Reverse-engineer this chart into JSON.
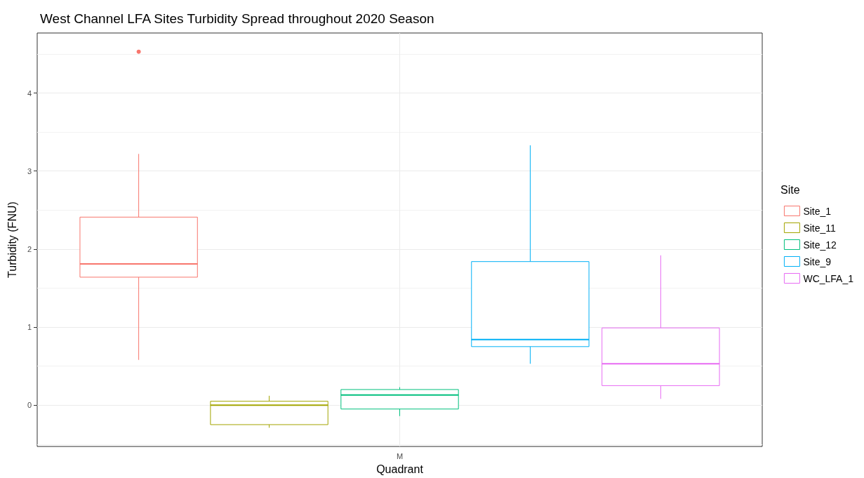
{
  "chart_data": {
    "type": "box",
    "title": "West Channel LFA Sites Turbidity Spread throughout 2020 Season",
    "xlabel": "Quadrant",
    "ylabel": "Turbidity (FNU)",
    "legend_title": "Site",
    "categories": [
      "M"
    ],
    "series": [
      {
        "name": "Site_1",
        "color": "#f8766d",
        "boxes": [
          {
            "low": 0.58,
            "q1": 1.64,
            "median": 1.81,
            "q3": 2.41,
            "high": 3.22,
            "outliers": [
              4.53
            ]
          }
        ]
      },
      {
        "name": "Site_11",
        "color": "#a3a500",
        "boxes": [
          {
            "low": -0.29,
            "q1": -0.25,
            "median": 0.0,
            "q3": 0.05,
            "high": 0.12
          }
        ]
      },
      {
        "name": "Site_12",
        "color": "#00bf7d",
        "boxes": [
          {
            "low": -0.14,
            "q1": -0.05,
            "median": 0.13,
            "q3": 0.2,
            "high": 0.23
          }
        ]
      },
      {
        "name": "Site_9",
        "color": "#00b0f6",
        "boxes": [
          {
            "low": 0.53,
            "q1": 0.75,
            "median": 0.84,
            "q3": 1.84,
            "high": 3.33
          }
        ]
      },
      {
        "name": "WC_LFA_1",
        "color": "#e76bf3",
        "boxes": [
          {
            "low": 0.08,
            "q1": 0.25,
            "median": 0.53,
            "q3": 0.99,
            "high": 1.92
          }
        ]
      }
    ],
    "ylim": [
      -0.53,
      4.77
    ],
    "yticks": [
      0,
      1,
      2,
      3,
      4
    ],
    "grid": true,
    "legend": "right"
  }
}
